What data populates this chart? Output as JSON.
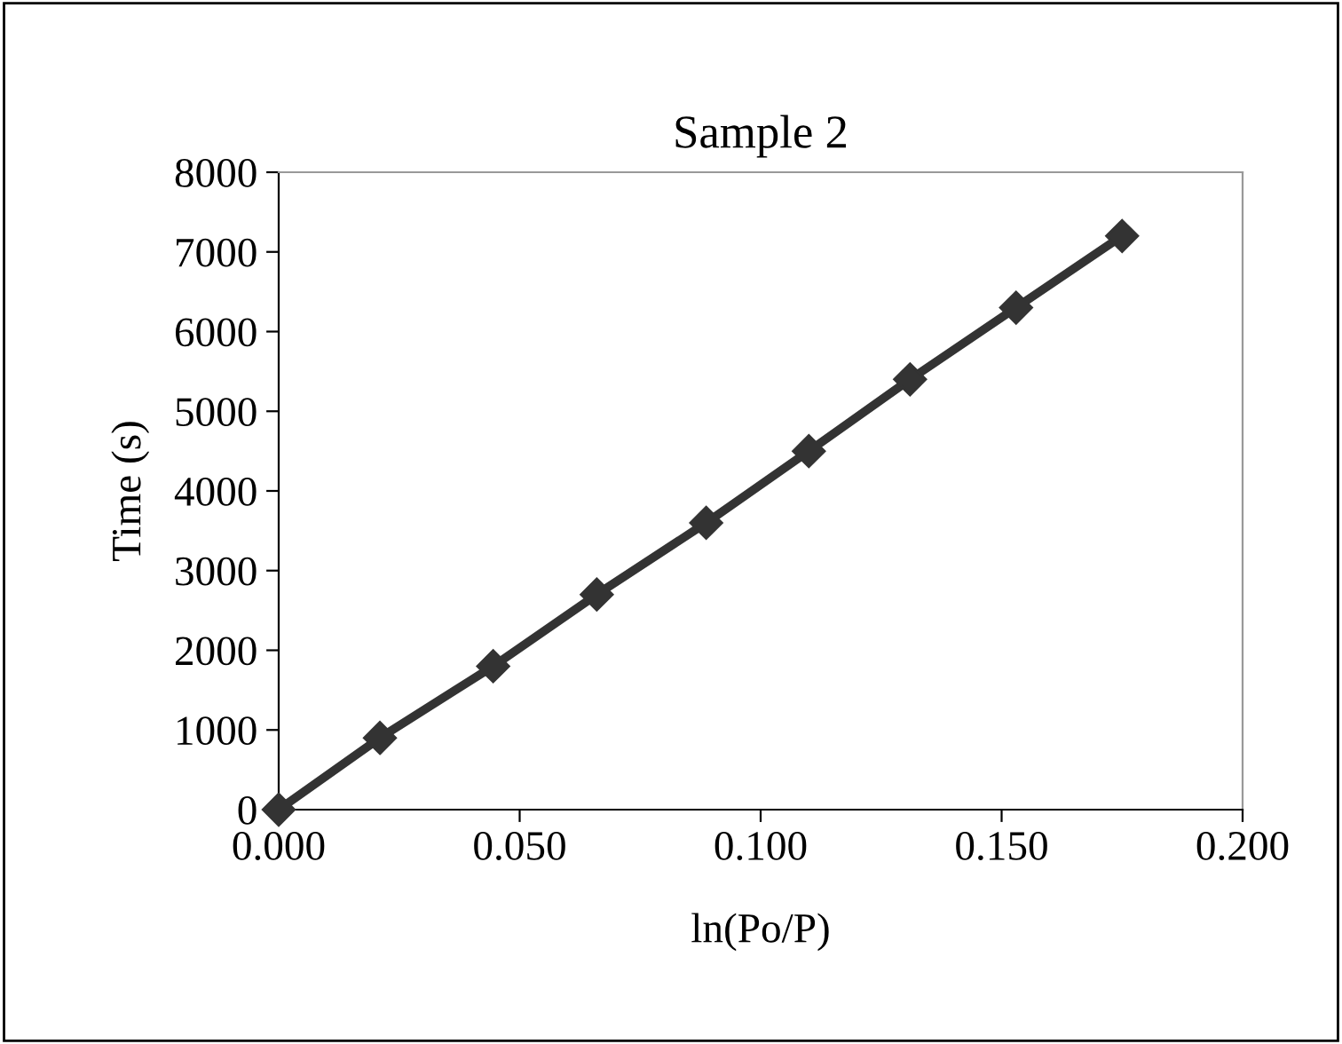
{
  "chart_data": {
    "type": "line",
    "title": "Sample 2",
    "xlabel": "ln(Po/P)",
    "ylabel": "Time (s)",
    "x": [
      0.0,
      0.021,
      0.0445,
      0.066,
      0.0887,
      0.11,
      0.131,
      0.153,
      0.175
    ],
    "series": [
      {
        "color": "#333333",
        "values": [
          0,
          900,
          1800,
          2700,
          3600,
          4500,
          5400,
          6300,
          7200
        ]
      }
    ],
    "xlim": [
      0,
      0.2
    ],
    "xticks": [
      {
        "value": 0,
        "label": "0.000"
      },
      {
        "value": 0.05,
        "label": "0.050"
      },
      {
        "value": 0.1,
        "label": "0.100"
      },
      {
        "value": 0.15,
        "label": "0.150"
      },
      {
        "value": 0.2,
        "label": "0.200"
      }
    ],
    "ylim": [
      0,
      8000
    ],
    "yticks": [
      0,
      1000,
      2000,
      3000,
      4000,
      5000,
      6000,
      7000,
      8000
    ],
    "marker": "diamond",
    "line_style": "solid",
    "grid": false,
    "legend": false
  }
}
